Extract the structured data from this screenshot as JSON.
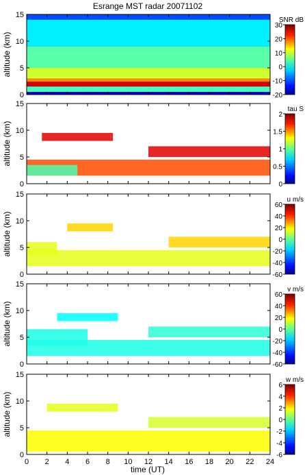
{
  "figure": {
    "title": "Esrange MST radar 20071102",
    "xlabel": "time (UT)",
    "ylabel": "altitude (km)"
  },
  "chart_data": [
    {
      "type": "heatmap",
      "title": "Esrange MST radar 20071102",
      "ylabel": "altitude (km)",
      "xlim": [
        0,
        24
      ],
      "ylim": [
        0,
        15
      ],
      "yticks": [
        0,
        5,
        10,
        15
      ],
      "colorbar": {
        "label": "SNR dB",
        "range": [
          -20,
          30
        ],
        "ticks": [
          30,
          20,
          10,
          0,
          -10,
          -20
        ]
      },
      "layers": [
        {
          "x": [
            0,
            24
          ],
          "y": [
            0,
            15
          ],
          "value": -10
        },
        {
          "x": [
            0,
            24
          ],
          "y": [
            9,
            14
          ],
          "value": -2
        },
        {
          "x": [
            0,
            24
          ],
          "y": [
            5,
            9
          ],
          "value": 3
        },
        {
          "x": [
            0,
            24
          ],
          "y": [
            3,
            5
          ],
          "value": 9
        },
        {
          "x": [
            0,
            24
          ],
          "y": [
            2.4,
            3
          ],
          "value": 17
        },
        {
          "x": [
            0,
            24
          ],
          "y": [
            1.5,
            2.4
          ],
          "value": 26
        },
        {
          "x": [
            0,
            24
          ],
          "y": [
            0.5,
            1.5
          ],
          "value": 2
        },
        {
          "x": [
            0,
            24
          ],
          "y": [
            0,
            0.5
          ],
          "value": -17
        }
      ]
    },
    {
      "type": "heatmap",
      "ylabel": "altitude (km)",
      "xlim": [
        0,
        24
      ],
      "ylim": [
        0,
        15
      ],
      "yticks": [
        0,
        5,
        10,
        15
      ],
      "colorbar": {
        "label": "tau S",
        "range": [
          0,
          2
        ],
        "ticks": [
          2,
          1.5,
          1,
          0.5,
          0
        ]
      },
      "layers": [
        {
          "x": [
            0,
            24
          ],
          "y": [
            1.5,
            4.5
          ],
          "value": 1.6
        },
        {
          "x": [
            0,
            5
          ],
          "y": [
            1.5,
            3.5
          ],
          "value": 0.9
        },
        {
          "x": [
            1.5,
            8.5
          ],
          "y": [
            8,
            9.5
          ],
          "value": 1.8
        },
        {
          "x": [
            12,
            24
          ],
          "y": [
            5,
            7
          ],
          "value": 1.8
        }
      ]
    },
    {
      "type": "heatmap",
      "ylabel": "altitude (km)",
      "xlim": [
        0,
        24
      ],
      "ylim": [
        0,
        15
      ],
      "yticks": [
        0,
        5,
        10,
        15
      ],
      "colorbar": {
        "label": "u m/s",
        "range": [
          -60,
          60
        ],
        "ticks": [
          60,
          40,
          20,
          0,
          -20,
          -40,
          -60
        ]
      },
      "layers": [
        {
          "x": [
            0,
            24
          ],
          "y": [
            1.5,
            4.5
          ],
          "value": 12
        },
        {
          "x": [
            0,
            3
          ],
          "y": [
            3.5,
            6
          ],
          "value": 12
        },
        {
          "x": [
            4,
            8.5
          ],
          "y": [
            8,
            9.5
          ],
          "value": 20
        },
        {
          "x": [
            14,
            24
          ],
          "y": [
            5,
            7
          ],
          "value": 20
        }
      ]
    },
    {
      "type": "heatmap",
      "ylabel": "altitude (km)",
      "xlim": [
        0,
        24
      ],
      "ylim": [
        0,
        15
      ],
      "yticks": [
        0,
        5,
        10,
        15
      ],
      "colorbar": {
        "label": "v m/s",
        "range": [
          -60,
          60
        ],
        "ticks": [
          60,
          40,
          20,
          0,
          -20,
          -40,
          -60
        ]
      },
      "layers": [
        {
          "x": [
            0,
            24
          ],
          "y": [
            1.5,
            4.5
          ],
          "value": -12
        },
        {
          "x": [
            0,
            6
          ],
          "y": [
            3.5,
            6.5
          ],
          "value": -12
        },
        {
          "x": [
            3,
            9
          ],
          "y": [
            8,
            9.5
          ],
          "value": -15
        },
        {
          "x": [
            12,
            24
          ],
          "y": [
            5,
            7
          ],
          "value": -10
        }
      ]
    },
    {
      "type": "heatmap",
      "xlabel": "time (UT)",
      "ylabel": "altitude (km)",
      "xlim": [
        0,
        24
      ],
      "ylim": [
        0,
        15
      ],
      "xticks": [
        0,
        2,
        4,
        6,
        8,
        10,
        12,
        14,
        16,
        18,
        20,
        22,
        24
      ],
      "yticks": [
        0,
        5,
        10,
        15
      ],
      "colorbar": {
        "label": "w m/s",
        "range": [
          -6,
          6
        ],
        "ticks": [
          6,
          4,
          2,
          0,
          -2,
          -4,
          -6
        ]
      },
      "layers": [
        {
          "x": [
            0,
            24
          ],
          "y": [
            0.5,
            4.5
          ],
          "value": 1.5
        },
        {
          "x": [
            2,
            9
          ],
          "y": [
            8,
            9.5
          ],
          "value": 1.2
        },
        {
          "x": [
            12,
            24
          ],
          "y": [
            5,
            7
          ],
          "value": 1.0
        }
      ]
    }
  ]
}
